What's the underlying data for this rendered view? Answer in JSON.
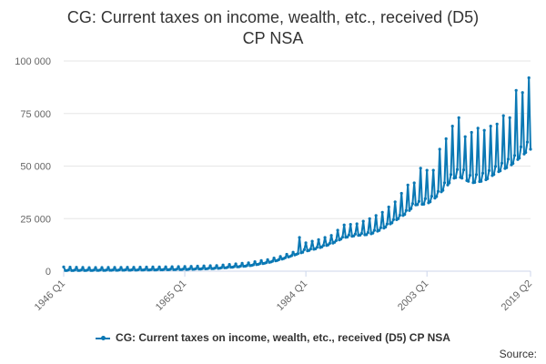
{
  "chart_data": {
    "type": "line",
    "title": "CG: Current taxes on income, wealth, etc., received (D5)",
    "subtitle": "CP NSA",
    "xlabel": "",
    "ylabel": "",
    "ylim": [
      0,
      100000
    ],
    "y_ticks": [
      "0",
      "25 000",
      "50 000",
      "75 000",
      "100 000"
    ],
    "y_tick_values": [
      0,
      25000,
      50000,
      75000,
      100000
    ],
    "x_ticks": [
      "1946 Q1",
      "1965 Q1",
      "1984 Q1",
      "2003 Q1",
      "2019 Q2"
    ],
    "x_range": [
      "1946 Q1",
      "2019 Q2"
    ],
    "grid": "horizontal",
    "legend_position": "bottom",
    "color": "#0a78b4",
    "series": [
      {
        "name": "CG: Current taxes on income, wealth, etc., received (D5) CP NSA",
        "frequency": "quarterly",
        "annual_low_points": [
          [
            "1946",
            300
          ],
          [
            "1950",
            350
          ],
          [
            "1955",
            450
          ],
          [
            "1960",
            600
          ],
          [
            "1965",
            800
          ],
          [
            "1970",
            1300
          ],
          [
            "1975",
            2500
          ],
          [
            "1978",
            4000
          ],
          [
            "1980",
            5500
          ],
          [
            "1982",
            7500
          ],
          [
            "1984",
            9500
          ],
          [
            "1986",
            11000
          ],
          [
            "1988",
            13000
          ],
          [
            "1990",
            16000
          ],
          [
            "1992",
            17000
          ],
          [
            "1994",
            17500
          ],
          [
            "1996",
            20000
          ],
          [
            "1998",
            24000
          ],
          [
            "2000",
            28000
          ],
          [
            "2001",
            31500
          ],
          [
            "2003",
            32000
          ],
          [
            "2004",
            34000
          ],
          [
            "2006",
            40000
          ],
          [
            "2007",
            44000
          ],
          [
            "2008",
            45000
          ],
          [
            "2010",
            42000
          ],
          [
            "2012",
            43000
          ],
          [
            "2014",
            47000
          ],
          [
            "2016",
            50000
          ],
          [
            "2018",
            55000
          ],
          [
            "2019",
            58000
          ]
        ],
        "annual_peak_points": [
          [
            "1946",
            2000
          ],
          [
            "1950",
            1700
          ],
          [
            "1955",
            1800
          ],
          [
            "1960",
            2000
          ],
          [
            "1965",
            2200
          ],
          [
            "1970",
            2700
          ],
          [
            "1975",
            4000
          ],
          [
            "1978",
            5500
          ],
          [
            "1980",
            7000
          ],
          [
            "1982",
            9000
          ],
          [
            "1983",
            16000
          ],
          [
            "1984",
            13500
          ],
          [
            "1986",
            15000
          ],
          [
            "1988",
            17000
          ],
          [
            "1990",
            22000
          ],
          [
            "1992",
            22500
          ],
          [
            "1994",
            25000
          ],
          [
            "1996",
            28000
          ],
          [
            "1998",
            33000
          ],
          [
            "2000",
            41000
          ],
          [
            "2001",
            42000
          ],
          [
            "2002",
            49000
          ],
          [
            "2003",
            48000
          ],
          [
            "2004",
            48000
          ],
          [
            "2005",
            58000
          ],
          [
            "2006",
            63000
          ],
          [
            "2007",
            69000
          ],
          [
            "2008",
            73000
          ],
          [
            "2009",
            64000
          ],
          [
            "2010",
            66000
          ],
          [
            "2011",
            68000
          ],
          [
            "2012",
            67000
          ],
          [
            "2013",
            69000
          ],
          [
            "2014",
            70000
          ],
          [
            "2015",
            74000
          ],
          [
            "2016",
            73000
          ],
          [
            "2017",
            86000
          ],
          [
            "2018",
            85000
          ],
          [
            "2019",
            92000
          ]
        ]
      }
    ]
  },
  "source_label": "Source:"
}
